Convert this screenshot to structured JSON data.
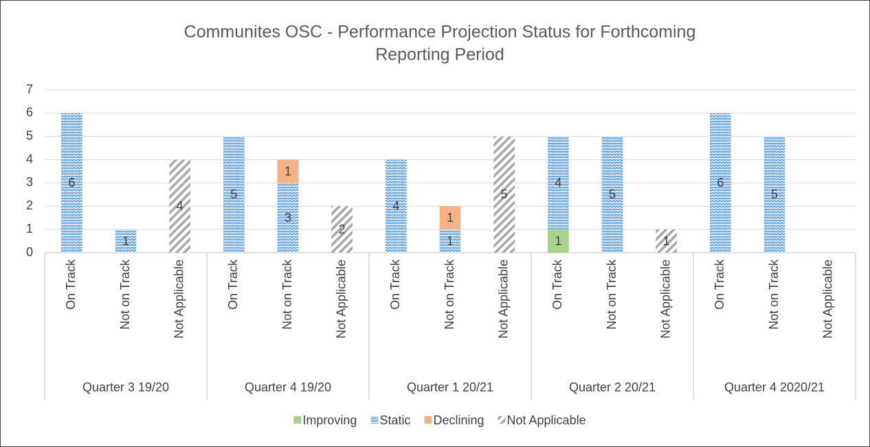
{
  "chart_data": {
    "type": "stacked_bar",
    "title": "Communites OSC - Performance Projection Status for Forthcoming",
    "subtitle": "Reporting Period",
    "categories": [
      "On Track",
      "Not on Track",
      "Not Applicable",
      "On Track",
      "Not on Track",
      "Not Applicable",
      "On Track",
      "Not on Track",
      "Not Applicable",
      "On Track",
      "Not on Track",
      "Not Applicable",
      "On Track",
      "Not on Track",
      "Not Applicable"
    ],
    "groups": [
      "Quarter 3 19/20",
      "Quarter 4 19/20",
      "Quarter 1 20/21",
      "Quarter 2 20/21",
      "Quarter 4 2020/21"
    ],
    "series": [
      {
        "name": "Improving",
        "color": "#a9d18e",
        "pattern": "solid",
        "values": [
          null,
          null,
          null,
          null,
          null,
          null,
          null,
          null,
          null,
          1,
          null,
          null,
          null,
          null,
          null
        ]
      },
      {
        "name": "Static",
        "color": "#5b9bd5",
        "pattern": "wave",
        "values": [
          6,
          1,
          null,
          5,
          3,
          null,
          4,
          1,
          null,
          4,
          5,
          null,
          6,
          5,
          null
        ]
      },
      {
        "name": "Declining",
        "color": "#f4b183",
        "pattern": "solid",
        "values": [
          null,
          null,
          null,
          null,
          1,
          null,
          null,
          1,
          null,
          null,
          null,
          null,
          null,
          null,
          null
        ]
      },
      {
        "name": "Not Applicable",
        "color": "#a6a6a6",
        "pattern": "hatch",
        "values": [
          null,
          null,
          4,
          null,
          null,
          2,
          null,
          null,
          5,
          null,
          null,
          1,
          null,
          null,
          null
        ]
      }
    ],
    "ylim": [
      0,
      7
    ],
    "yticks": [
      0,
      1,
      2,
      3,
      4,
      5,
      6,
      7
    ],
    "grid": true,
    "legend": "bottom"
  }
}
